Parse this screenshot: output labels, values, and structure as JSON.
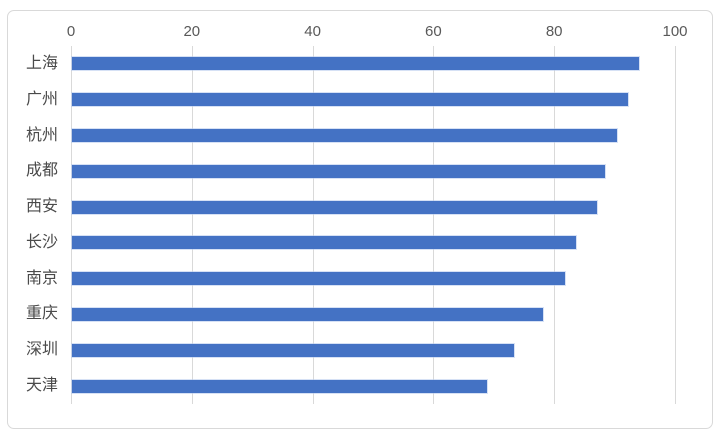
{
  "chart_data": {
    "type": "bar",
    "orientation": "horizontal",
    "title": "",
    "xlabel": "",
    "ylabel": "",
    "categories": [
      "上海",
      "广州",
      "杭州",
      "成都",
      "西安",
      "长沙",
      "南京",
      "重庆",
      "深圳",
      "天津"
    ],
    "values": [
      93.8,
      92.0,
      90.2,
      88.3,
      86.9,
      83.4,
      81.7,
      77.9,
      73.1,
      68.7
    ],
    "xlim": [
      0,
      100
    ],
    "xticks": [
      0,
      20,
      40,
      60,
      80,
      100
    ],
    "tick_labels": [
      "0",
      "20",
      "40",
      "60",
      "80",
      "100"
    ],
    "grid": true,
    "legend": false,
    "axis_position": "top",
    "colors": {
      "bar": "#4472C4",
      "gridline": "#D9D9D9",
      "tick_label": "#595959",
      "category_label": "#4A4A4A",
      "frame_border": "#D9D9D9",
      "background": "#FFFFFF"
    }
  }
}
